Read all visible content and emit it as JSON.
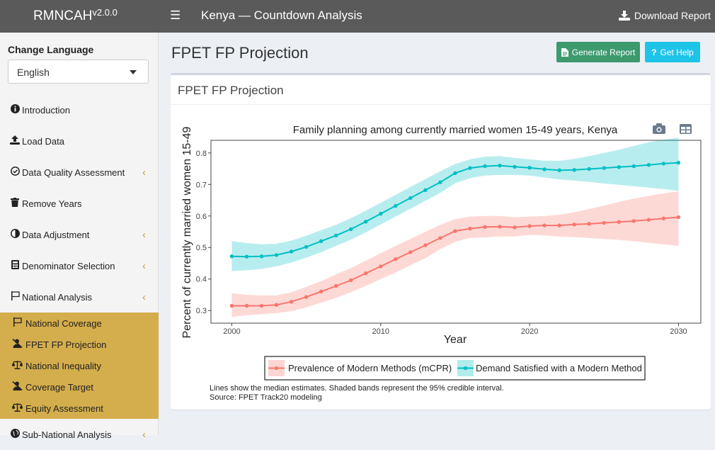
{
  "header": {
    "brand": "RMNCAH",
    "version": "v2.0.0",
    "menu_icon": "hamburger-icon",
    "app_title": "Kenya — Countdown Analysis",
    "download_label": "Download Report"
  },
  "sidebar": {
    "language_label": "Change Language",
    "language_value": "English",
    "items": [
      {
        "label": "Introduction",
        "icon": "info-icon"
      },
      {
        "label": "Load Data",
        "icon": "upload-icon"
      },
      {
        "label": "Data Quality Assessment",
        "icon": "check-circle-icon"
      },
      {
        "label": "Remove Years",
        "icon": "trash-icon"
      },
      {
        "label": "Data Adjustment",
        "icon": "adjust-icon"
      },
      {
        "label": "Denominator Selection",
        "icon": "calculator-icon"
      },
      {
        "label": "National Analysis",
        "icon": "flag-icon"
      }
    ],
    "subitems": [
      {
        "label": "National Coverage",
        "icon": "flag-icon"
      },
      {
        "label": "FPET FP Projection",
        "icon": "user-slash-icon"
      },
      {
        "label": "National Inequality",
        "icon": "balance-scale-icon"
      },
      {
        "label": "Coverage Target",
        "icon": "user-slash-icon"
      },
      {
        "label": "Equity Assessment",
        "icon": "balance-scale-icon"
      }
    ],
    "last_item": {
      "label": "Sub-National Analysis",
      "icon": "globe-icon"
    }
  },
  "content": {
    "page_title": "FPET FP Projection",
    "generate_label": "Generate Report",
    "help_label": "Get Help",
    "box_title": "FPET FP Projection",
    "note_line1": "Lines show the median estimates. Shaded bands represent the 95% credible interval.",
    "note_line2": "Source: FPET Track20 modeling"
  },
  "colors": {
    "mcpr": "#f8766d",
    "demand": "#00bfc4",
    "sidebar_active": "#d4ad4c",
    "btn_green": "#3c9a6d",
    "btn_cyan": "#1ec4e8"
  },
  "chart_data": {
    "type": "line",
    "title": "Family planning among currently married women 15-49 years, Kenya",
    "xlabel": "Year",
    "ylabel": "Percent of currently married women 15-49",
    "xlim": [
      1998.6,
      2031.5
    ],
    "ylim": [
      0.26,
      0.84
    ],
    "xticks": [
      2000,
      2010,
      2020,
      2030
    ],
    "yticks": [
      0.3,
      0.4,
      0.5,
      0.6,
      0.7,
      0.8
    ],
    "x": [
      2000,
      2001,
      2002,
      2003,
      2004,
      2005,
      2006,
      2007,
      2008,
      2009,
      2010,
      2011,
      2012,
      2013,
      2014,
      2015,
      2016,
      2017,
      2018,
      2019,
      2020,
      2021,
      2022,
      2023,
      2024,
      2025,
      2026,
      2027,
      2028,
      2029,
      2030
    ],
    "series": [
      {
        "name": "Prevalence of Modern Methods (mCPR)",
        "values": [
          0.315,
          0.315,
          0.315,
          0.318,
          0.328,
          0.343,
          0.36,
          0.378,
          0.396,
          0.418,
          0.44,
          0.463,
          0.485,
          0.507,
          0.53,
          0.552,
          0.56,
          0.565,
          0.566,
          0.564,
          0.568,
          0.57,
          0.57,
          0.573,
          0.575,
          0.578,
          0.581,
          0.584,
          0.588,
          0.592,
          0.596
        ],
        "lower": [
          0.28,
          0.285,
          0.288,
          0.292,
          0.298,
          0.31,
          0.325,
          0.34,
          0.358,
          0.378,
          0.4,
          0.42,
          0.444,
          0.466,
          0.495,
          0.518,
          0.53,
          0.532,
          0.535,
          0.535,
          0.54,
          0.538,
          0.535,
          0.533,
          0.53,
          0.527,
          0.524,
          0.52,
          0.515,
          0.51,
          0.505
        ],
        "upper": [
          0.355,
          0.35,
          0.348,
          0.348,
          0.358,
          0.375,
          0.393,
          0.415,
          0.435,
          0.458,
          0.482,
          0.505,
          0.527,
          0.55,
          0.572,
          0.59,
          0.598,
          0.6,
          0.6,
          0.596,
          0.598,
          0.6,
          0.604,
          0.612,
          0.622,
          0.633,
          0.645,
          0.655,
          0.664,
          0.672,
          0.678
        ]
      },
      {
        "name": "Demand Satisfied with a Modern Method",
        "values": [
          0.472,
          0.471,
          0.472,
          0.476,
          0.487,
          0.502,
          0.52,
          0.538,
          0.558,
          0.582,
          0.607,
          0.632,
          0.657,
          0.682,
          0.707,
          0.736,
          0.752,
          0.758,
          0.76,
          0.756,
          0.753,
          0.748,
          0.745,
          0.746,
          0.749,
          0.752,
          0.755,
          0.758,
          0.762,
          0.766,
          0.769
        ],
        "lower": [
          0.425,
          0.428,
          0.432,
          0.44,
          0.452,
          0.468,
          0.485,
          0.505,
          0.525,
          0.548,
          0.573,
          0.598,
          0.623,
          0.648,
          0.673,
          0.704,
          0.72,
          0.728,
          0.73,
          0.73,
          0.728,
          0.722,
          0.716,
          0.712,
          0.708,
          0.703,
          0.699,
          0.694,
          0.69,
          0.685,
          0.68
        ],
        "upper": [
          0.52,
          0.514,
          0.51,
          0.512,
          0.522,
          0.537,
          0.555,
          0.572,
          0.593,
          0.617,
          0.642,
          0.667,
          0.692,
          0.717,
          0.742,
          0.765,
          0.78,
          0.788,
          0.79,
          0.784,
          0.78,
          0.775,
          0.775,
          0.781,
          0.79,
          0.8,
          0.81,
          0.822,
          0.834,
          0.842,
          0.848
        ]
      }
    ],
    "legend_position": "bottom",
    "grid": false
  }
}
